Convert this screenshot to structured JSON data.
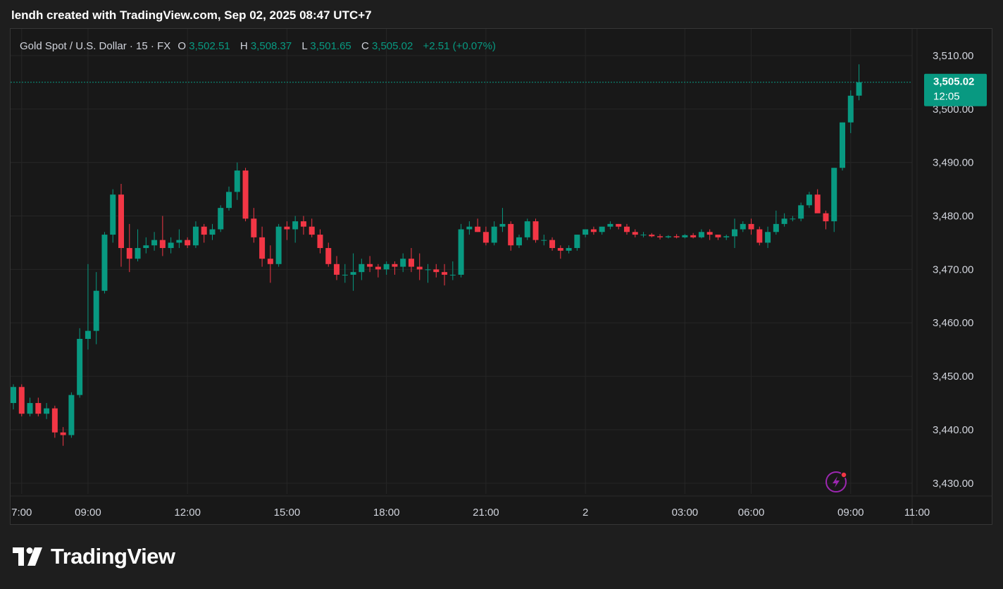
{
  "header": {
    "credit": "lendh created with TradingView.com, Sep 02, 2025 08:47 UTC+7"
  },
  "legend": {
    "symbol": "Gold Spot / U.S. Dollar · 15 · FX",
    "open_label": "O",
    "open": "3,502.51",
    "high_label": "H",
    "high": "3,508.37",
    "low_label": "L",
    "low": "3,501.65",
    "close_label": "C",
    "close": "3,505.02",
    "change": "+2.51 (+0.07%)"
  },
  "price_badge": {
    "price": "3,505.02",
    "countdown": "12:05"
  },
  "brand": {
    "name": "TradingView"
  },
  "colors": {
    "up": "#089981",
    "down": "#f23645",
    "background": "#181818",
    "grid": "#262626",
    "axis_text": "#d1d4dc",
    "badge": "#089981",
    "alert_icon": "#9c27b0"
  },
  "icons": {
    "alert": "lightning-bolt-icon",
    "logo": "tradingview-logo-icon"
  },
  "chart_data": {
    "type": "candlestick",
    "title": "Gold Spot / U.S. Dollar",
    "interval": "15",
    "ylim": [
      3428,
      3515
    ],
    "y_ticks": [
      3430,
      3440,
      3450,
      3460,
      3470,
      3480,
      3490,
      3500,
      3510
    ],
    "y_tick_labels": [
      "3,430.00",
      "3,440.00",
      "3,450.00",
      "3,460.00",
      "3,470.00",
      "3,480.00",
      "3,490.00",
      "3,500.00",
      "3,510.00"
    ],
    "x_ticks": [
      "7:00",
      "09:00",
      "12:00",
      "15:00",
      "18:00",
      "21:00",
      "2",
      "03:00",
      "06:00",
      "09:00",
      "11:00"
    ],
    "x_tick_bar_index": [
      1,
      9,
      21,
      33,
      45,
      57,
      69,
      81,
      89,
      101,
      109
    ],
    "last_price": 3505.02,
    "grid": true,
    "candles": [
      {
        "o": 3445.0,
        "h": 3448.5,
        "l": 3443.8,
        "c": 3448.0
      },
      {
        "o": 3448.0,
        "h": 3448.5,
        "l": 3442.5,
        "c": 3443.0
      },
      {
        "o": 3443.0,
        "h": 3446.0,
        "l": 3442.5,
        "c": 3445.0
      },
      {
        "o": 3445.0,
        "h": 3446.0,
        "l": 3442.5,
        "c": 3443.0
      },
      {
        "o": 3443.0,
        "h": 3445.0,
        "l": 3442.0,
        "c": 3444.0
      },
      {
        "o": 3444.0,
        "h": 3444.5,
        "l": 3438.5,
        "c": 3439.5
      },
      {
        "o": 3439.5,
        "h": 3440.5,
        "l": 3437.0,
        "c": 3439.0
      },
      {
        "o": 3439.0,
        "h": 3447.0,
        "l": 3438.5,
        "c": 3446.5
      },
      {
        "o": 3446.5,
        "h": 3459.0,
        "l": 3446.0,
        "c": 3457.0
      },
      {
        "o": 3457.0,
        "h": 3471.0,
        "l": 3455.0,
        "c": 3458.5
      },
      {
        "o": 3458.5,
        "h": 3469.5,
        "l": 3456.0,
        "c": 3466.0
      },
      {
        "o": 3466.0,
        "h": 3477.0,
        "l": 3465.5,
        "c": 3476.5
      },
      {
        "o": 3476.5,
        "h": 3485.0,
        "l": 3475.0,
        "c": 3484.0
      },
      {
        "o": 3484.0,
        "h": 3486.0,
        "l": 3470.5,
        "c": 3474.0
      },
      {
        "o": 3474.0,
        "h": 3478.5,
        "l": 3469.5,
        "c": 3472.0
      },
      {
        "o": 3472.0,
        "h": 3477.5,
        "l": 3471.5,
        "c": 3474.0
      },
      {
        "o": 3474.0,
        "h": 3476.0,
        "l": 3473.0,
        "c": 3474.5
      },
      {
        "o": 3474.5,
        "h": 3477.0,
        "l": 3473.5,
        "c": 3475.5
      },
      {
        "o": 3475.5,
        "h": 3480.0,
        "l": 3472.5,
        "c": 3474.0
      },
      {
        "o": 3474.0,
        "h": 3476.0,
        "l": 3473.0,
        "c": 3475.0
      },
      {
        "o": 3475.0,
        "h": 3477.5,
        "l": 3474.0,
        "c": 3475.5
      },
      {
        "o": 3475.5,
        "h": 3476.0,
        "l": 3474.0,
        "c": 3474.5
      },
      {
        "o": 3474.5,
        "h": 3479.0,
        "l": 3474.0,
        "c": 3478.0
      },
      {
        "o": 3478.0,
        "h": 3478.5,
        "l": 3475.0,
        "c": 3476.5
      },
      {
        "o": 3476.5,
        "h": 3478.5,
        "l": 3475.5,
        "c": 3477.5
      },
      {
        "o": 3477.5,
        "h": 3482.0,
        "l": 3477.0,
        "c": 3481.5
      },
      {
        "o": 3481.5,
        "h": 3485.5,
        "l": 3481.0,
        "c": 3484.5
      },
      {
        "o": 3484.5,
        "h": 3490.0,
        "l": 3483.0,
        "c": 3488.5
      },
      {
        "o": 3488.5,
        "h": 3489.0,
        "l": 3479.0,
        "c": 3479.5
      },
      {
        "o": 3479.5,
        "h": 3481.5,
        "l": 3475.0,
        "c": 3476.0
      },
      {
        "o": 3476.0,
        "h": 3478.0,
        "l": 3470.5,
        "c": 3472.0
      },
      {
        "o": 3472.0,
        "h": 3474.5,
        "l": 3467.5,
        "c": 3471.0
      },
      {
        "o": 3471.0,
        "h": 3478.5,
        "l": 3470.5,
        "c": 3478.0
      },
      {
        "o": 3478.0,
        "h": 3479.0,
        "l": 3475.5,
        "c": 3477.5
      },
      {
        "o": 3477.5,
        "h": 3480.0,
        "l": 3475.0,
        "c": 3479.0
      },
      {
        "o": 3479.0,
        "h": 3480.0,
        "l": 3476.5,
        "c": 3478.0
      },
      {
        "o": 3478.0,
        "h": 3479.5,
        "l": 3476.0,
        "c": 3476.5
      },
      {
        "o": 3476.5,
        "h": 3477.5,
        "l": 3473.0,
        "c": 3474.0
      },
      {
        "o": 3474.0,
        "h": 3475.0,
        "l": 3470.5,
        "c": 3471.0
      },
      {
        "o": 3471.0,
        "h": 3472.5,
        "l": 3468.0,
        "c": 3469.0
      },
      {
        "o": 3469.0,
        "h": 3471.0,
        "l": 3467.5,
        "c": 3469.0
      },
      {
        "o": 3469.0,
        "h": 3473.0,
        "l": 3466.0,
        "c": 3469.5
      },
      {
        "o": 3469.5,
        "h": 3472.0,
        "l": 3468.0,
        "c": 3471.0
      },
      {
        "o": 3471.0,
        "h": 3472.5,
        "l": 3469.5,
        "c": 3470.5
      },
      {
        "o": 3470.5,
        "h": 3471.0,
        "l": 3468.5,
        "c": 3470.0
      },
      {
        "o": 3470.0,
        "h": 3471.5,
        "l": 3469.0,
        "c": 3471.0
      },
      {
        "o": 3471.0,
        "h": 3471.5,
        "l": 3469.0,
        "c": 3470.5
      },
      {
        "o": 3470.5,
        "h": 3473.0,
        "l": 3469.5,
        "c": 3472.0
      },
      {
        "o": 3472.0,
        "h": 3474.0,
        "l": 3469.5,
        "c": 3470.5
      },
      {
        "o": 3470.5,
        "h": 3473.0,
        "l": 3468.0,
        "c": 3470.0
      },
      {
        "o": 3470.0,
        "h": 3471.0,
        "l": 3467.5,
        "c": 3470.0
      },
      {
        "o": 3470.0,
        "h": 3471.0,
        "l": 3468.5,
        "c": 3469.5
      },
      {
        "o": 3469.5,
        "h": 3471.0,
        "l": 3467.0,
        "c": 3469.0
      },
      {
        "o": 3469.0,
        "h": 3471.5,
        "l": 3468.0,
        "c": 3469.0
      },
      {
        "o": 3469.0,
        "h": 3478.5,
        "l": 3468.5,
        "c": 3477.5
      },
      {
        "o": 3477.5,
        "h": 3479.0,
        "l": 3476.5,
        "c": 3478.0
      },
      {
        "o": 3478.0,
        "h": 3479.5,
        "l": 3477.0,
        "c": 3477.0
      },
      {
        "o": 3477.0,
        "h": 3478.0,
        "l": 3474.5,
        "c": 3475.0
      },
      {
        "o": 3475.0,
        "h": 3479.0,
        "l": 3474.5,
        "c": 3478.0
      },
      {
        "o": 3478.0,
        "h": 3481.5,
        "l": 3477.0,
        "c": 3478.5
      },
      {
        "o": 3478.5,
        "h": 3479.0,
        "l": 3473.5,
        "c": 3474.5
      },
      {
        "o": 3474.5,
        "h": 3476.5,
        "l": 3474.0,
        "c": 3476.0
      },
      {
        "o": 3476.0,
        "h": 3479.5,
        "l": 3475.5,
        "c": 3479.0
      },
      {
        "o": 3479.0,
        "h": 3479.5,
        "l": 3475.0,
        "c": 3475.5
      },
      {
        "o": 3475.5,
        "h": 3476.5,
        "l": 3474.5,
        "c": 3475.5
      },
      {
        "o": 3475.5,
        "h": 3476.0,
        "l": 3473.5,
        "c": 3474.0
      },
      {
        "o": 3474.0,
        "h": 3474.5,
        "l": 3472.0,
        "c": 3473.5
      },
      {
        "o": 3473.5,
        "h": 3474.5,
        "l": 3473.0,
        "c": 3474.0
      },
      {
        "o": 3474.0,
        "h": 3476.5,
        "l": 3473.5,
        "c": 3476.5
      },
      {
        "o": 3476.5,
        "h": 3477.5,
        "l": 3476.0,
        "c": 3477.5
      },
      {
        "o": 3477.5,
        "h": 3478.0,
        "l": 3476.5,
        "c": 3477.0
      },
      {
        "o": 3477.0,
        "h": 3478.0,
        "l": 3476.5,
        "c": 3478.0
      },
      {
        "o": 3478.0,
        "h": 3479.0,
        "l": 3477.5,
        "c": 3478.5
      },
      {
        "o": 3478.5,
        "h": 3478.5,
        "l": 3477.5,
        "c": 3478.0
      },
      {
        "o": 3478.0,
        "h": 3478.5,
        "l": 3476.5,
        "c": 3477.0
      },
      {
        "o": 3477.0,
        "h": 3477.5,
        "l": 3476.0,
        "c": 3476.5
      },
      {
        "o": 3476.5,
        "h": 3477.0,
        "l": 3476.0,
        "c": 3476.5
      },
      {
        "o": 3476.5,
        "h": 3476.8,
        "l": 3476.0,
        "c": 3476.2
      },
      {
        "o": 3476.2,
        "h": 3476.6,
        "l": 3475.6,
        "c": 3476.0
      },
      {
        "o": 3476.0,
        "h": 3476.4,
        "l": 3475.8,
        "c": 3476.2
      },
      {
        "o": 3476.2,
        "h": 3476.6,
        "l": 3475.8,
        "c": 3476.0
      },
      {
        "o": 3476.0,
        "h": 3476.6,
        "l": 3475.8,
        "c": 3476.4
      },
      {
        "o": 3476.4,
        "h": 3476.8,
        "l": 3475.8,
        "c": 3476.0
      },
      {
        "o": 3476.0,
        "h": 3477.5,
        "l": 3475.8,
        "c": 3477.0
      },
      {
        "o": 3477.0,
        "h": 3477.5,
        "l": 3475.5,
        "c": 3476.5
      },
      {
        "o": 3476.5,
        "h": 3476.5,
        "l": 3475.5,
        "c": 3476.0
      },
      {
        "o": 3476.0,
        "h": 3476.5,
        "l": 3475.5,
        "c": 3476.2
      },
      {
        "o": 3476.2,
        "h": 3479.5,
        "l": 3474.0,
        "c": 3477.5
      },
      {
        "o": 3477.5,
        "h": 3479.0,
        "l": 3477.0,
        "c": 3478.5
      },
      {
        "o": 3478.5,
        "h": 3479.5,
        "l": 3476.5,
        "c": 3477.5
      },
      {
        "o": 3477.5,
        "h": 3478.0,
        "l": 3474.5,
        "c": 3475.0
      },
      {
        "o": 3475.0,
        "h": 3478.0,
        "l": 3474.0,
        "c": 3477.0
      },
      {
        "o": 3477.0,
        "h": 3481.0,
        "l": 3476.5,
        "c": 3478.5
      },
      {
        "o": 3478.5,
        "h": 3480.5,
        "l": 3478.0,
        "c": 3479.5
      },
      {
        "o": 3479.5,
        "h": 3480.0,
        "l": 3479.0,
        "c": 3479.5
      },
      {
        "o": 3479.5,
        "h": 3482.5,
        "l": 3479.0,
        "c": 3482.0
      },
      {
        "o": 3482.0,
        "h": 3484.5,
        "l": 3481.5,
        "c": 3484.0
      },
      {
        "o": 3484.0,
        "h": 3485.0,
        "l": 3481.0,
        "c": 3480.5
      },
      {
        "o": 3480.5,
        "h": 3481.0,
        "l": 3477.5,
        "c": 3479.0
      },
      {
        "o": 3479.0,
        "h": 3489.0,
        "l": 3477.0,
        "c": 3489.0
      },
      {
        "o": 3489.0,
        "h": 3497.5,
        "l": 3488.5,
        "c": 3497.5
      },
      {
        "o": 3497.5,
        "h": 3503.5,
        "l": 3495.5,
        "c": 3502.5
      },
      {
        "o": 3502.51,
        "h": 3508.37,
        "l": 3501.65,
        "c": 3505.02
      }
    ]
  }
}
